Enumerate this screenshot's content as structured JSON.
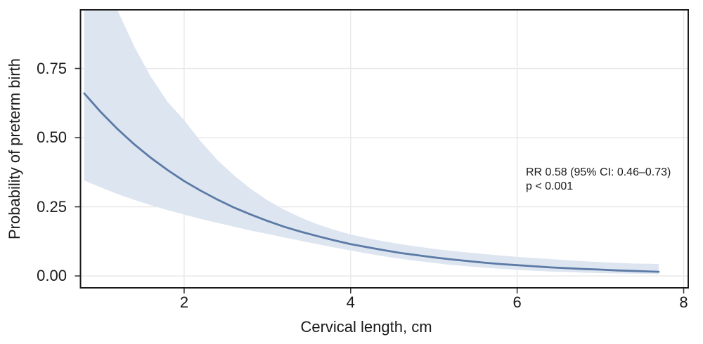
{
  "figure": {
    "background": "#ffffff"
  },
  "chart_data": {
    "type": "line",
    "title": "",
    "xlabel": "Cervical length, cm",
    "ylabel": "Probability of preterm birth",
    "xlim": [
      0.755,
      8.055
    ],
    "ylim": [
      -0.043,
      0.962
    ],
    "x_ticks": [
      2,
      4,
      6,
      8
    ],
    "x_tick_labels": [
      "2",
      "4",
      "6",
      "8"
    ],
    "y_ticks": [
      0,
      0.25,
      0.5,
      0.75
    ],
    "y_tick_labels": [
      "0.00",
      "0.25",
      "0.50",
      "0.75"
    ],
    "grid": true,
    "legend": "none",
    "annotation": {
      "line1": "RR 0.58 (95% CI: 0.46–0.73)",
      "line2": "p < 0.001",
      "anchor_x": 6.1,
      "anchor_y": 0.38
    },
    "x": [
      0.8,
      1.0,
      1.2,
      1.4,
      1.6,
      1.8,
      2.0,
      2.2,
      2.4,
      2.6,
      2.8,
      3.0,
      3.2,
      3.4,
      3.6,
      3.8,
      4.0,
      4.2,
      4.4,
      4.6,
      4.8,
      5.0,
      5.2,
      5.4,
      5.6,
      5.8,
      6.0,
      6.2,
      6.4,
      6.6,
      6.8,
      7.0,
      7.2,
      7.4,
      7.6,
      7.7
    ],
    "series": [
      {
        "name": "fitted probability of preterm birth",
        "values": [
          0.66,
          0.592,
          0.531,
          0.476,
          0.427,
          0.383,
          0.343,
          0.308,
          0.276,
          0.247,
          0.222,
          0.199,
          0.178,
          0.16,
          0.144,
          0.129,
          0.115,
          0.104,
          0.093,
          0.083,
          0.075,
          0.067,
          0.06,
          0.054,
          0.048,
          0.043,
          0.039,
          0.035,
          0.031,
          0.028,
          0.025,
          0.023,
          0.02,
          0.018,
          0.016,
          0.015
        ]
      },
      {
        "name": "95% CI lower bound",
        "values": [
          0.345,
          0.32,
          0.296,
          0.275,
          0.256,
          0.238,
          0.222,
          0.206,
          0.192,
          0.178,
          0.164,
          0.152,
          0.139,
          0.127,
          0.115,
          0.103,
          0.092,
          0.081,
          0.071,
          0.062,
          0.054,
          0.047,
          0.04,
          0.035,
          0.03,
          0.026,
          0.022,
          0.019,
          0.016,
          0.014,
          0.012,
          0.01,
          0.009,
          0.008,
          0.007,
          0.006
        ]
      },
      {
        "name": "95% CI upper bound",
        "values": [
          1.3,
          1.12,
          0.96,
          0.83,
          0.72,
          0.63,
          0.563,
          0.486,
          0.419,
          0.363,
          0.315,
          0.274,
          0.24,
          0.211,
          0.187,
          0.167,
          0.15,
          0.137,
          0.125,
          0.115,
          0.106,
          0.098,
          0.091,
          0.085,
          0.079,
          0.074,
          0.069,
          0.065,
          0.061,
          0.057,
          0.053,
          0.05,
          0.047,
          0.045,
          0.044,
          0.043
        ]
      }
    ],
    "colors": {
      "line": "#5b7aa5",
      "band": "#dde5f1",
      "grid": "#e8e8e8",
      "border": "#1a1a1a",
      "tick": "#3a3a3a",
      "text": "#1a1a1a"
    }
  }
}
